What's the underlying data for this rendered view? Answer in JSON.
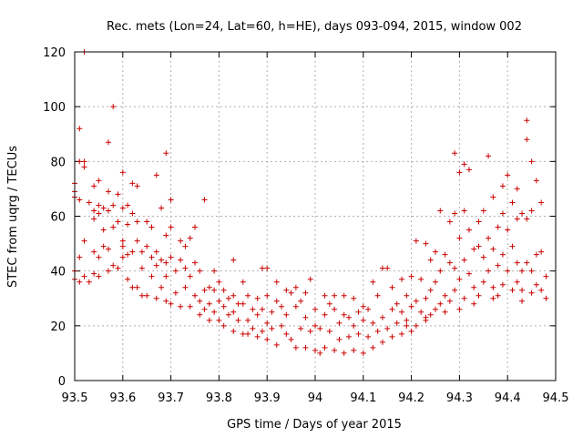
{
  "chart_data": {
    "type": "scatter",
    "title": "Rec. mets (Lon=24, Lat=60, h=HE), days 093-094, 2015, window 002",
    "xlabel": "GPS time / Days of year 2015",
    "ylabel": "STEC from uqrg / TECUs",
    "xlim": [
      93.5,
      94.5
    ],
    "ylim": [
      0,
      120
    ],
    "x_ticks": [
      "93.5",
      "93.6",
      "93.7",
      "93.8",
      "93.9",
      "94",
      "94.1",
      "94.2",
      "94.3",
      "94.4",
      "94.5"
    ],
    "y_ticks": [
      "0",
      "20",
      "40",
      "60",
      "80",
      "100",
      "120"
    ],
    "grid": true,
    "marker": "plus",
    "color": "#cc0000",
    "points": [
      [
        93.5,
        72
      ],
      [
        93.5,
        69
      ],
      [
        93.5,
        67
      ],
      [
        93.5,
        40
      ],
      [
        93.5,
        37
      ],
      [
        93.51,
        92
      ],
      [
        93.51,
        80
      ],
      [
        93.51,
        66
      ],
      [
        93.51,
        45
      ],
      [
        93.51,
        36
      ],
      [
        93.52,
        120
      ],
      [
        93.52,
        80
      ],
      [
        93.52,
        78
      ],
      [
        93.52,
        51
      ],
      [
        93.52,
        38
      ],
      [
        93.53,
        65
      ],
      [
        93.53,
        36
      ],
      [
        93.54,
        71
      ],
      [
        93.54,
        62
      ],
      [
        93.54,
        59
      ],
      [
        93.54,
        47
      ],
      [
        93.54,
        39
      ],
      [
        93.55,
        73
      ],
      [
        93.55,
        64
      ],
      [
        93.55,
        61
      ],
      [
        93.55,
        45
      ],
      [
        93.55,
        38
      ],
      [
        93.56,
        63
      ],
      [
        93.56,
        55
      ],
      [
        93.56,
        49
      ],
      [
        93.57,
        87
      ],
      [
        93.57,
        69
      ],
      [
        93.57,
        62
      ],
      [
        93.57,
        48
      ],
      [
        93.57,
        40
      ],
      [
        93.58,
        100
      ],
      [
        93.58,
        64
      ],
      [
        93.58,
        56
      ],
      [
        93.58,
        42
      ],
      [
        93.59,
        68
      ],
      [
        93.59,
        58
      ],
      [
        93.59,
        41
      ],
      [
        93.6,
        76
      ],
      [
        93.6,
        63
      ],
      [
        93.6,
        51
      ],
      [
        93.6,
        49
      ],
      [
        93.6,
        45
      ],
      [
        93.61,
        64
      ],
      [
        93.61,
        57
      ],
      [
        93.61,
        46
      ],
      [
        93.61,
        37
      ],
      [
        93.62,
        72
      ],
      [
        93.62,
        61
      ],
      [
        93.62,
        47
      ],
      [
        93.62,
        34
      ],
      [
        93.63,
        71
      ],
      [
        93.63,
        58
      ],
      [
        93.63,
        51
      ],
      [
        93.63,
        34
      ],
      [
        93.64,
        47
      ],
      [
        93.64,
        41
      ],
      [
        93.64,
        31
      ],
      [
        93.65,
        58
      ],
      [
        93.65,
        49
      ],
      [
        93.65,
        31
      ],
      [
        93.66,
        56
      ],
      [
        93.66,
        45
      ],
      [
        93.66,
        38
      ],
      [
        93.67,
        75
      ],
      [
        93.67,
        47
      ],
      [
        93.67,
        42
      ],
      [
        93.67,
        30
      ],
      [
        93.68,
        63
      ],
      [
        93.68,
        44
      ],
      [
        93.68,
        34
      ],
      [
        93.69,
        83
      ],
      [
        93.69,
        53
      ],
      [
        93.69,
        43
      ],
      [
        93.69,
        38
      ],
      [
        93.69,
        29
      ],
      [
        93.7,
        66
      ],
      [
        93.7,
        56
      ],
      [
        93.7,
        45
      ],
      [
        93.7,
        28
      ],
      [
        93.71,
        40
      ],
      [
        93.71,
        32
      ],
      [
        93.72,
        51
      ],
      [
        93.72,
        44
      ],
      [
        93.72,
        27
      ],
      [
        93.73,
        49
      ],
      [
        93.73,
        41
      ],
      [
        93.73,
        34
      ],
      [
        93.74,
        52
      ],
      [
        93.74,
        38
      ],
      [
        93.74,
        27
      ],
      [
        93.75,
        56
      ],
      [
        93.75,
        43
      ],
      [
        93.75,
        31
      ],
      [
        93.76,
        40
      ],
      [
        93.76,
        29
      ],
      [
        93.76,
        24
      ],
      [
        93.77,
        66
      ],
      [
        93.77,
        33
      ],
      [
        93.77,
        26
      ],
      [
        93.78,
        34
      ],
      [
        93.78,
        28
      ],
      [
        93.78,
        22
      ],
      [
        93.79,
        40
      ],
      [
        93.79,
        33
      ],
      [
        93.79,
        25
      ],
      [
        93.8,
        36
      ],
      [
        93.8,
        29
      ],
      [
        93.8,
        22
      ],
      [
        93.81,
        33
      ],
      [
        93.81,
        27
      ],
      [
        93.81,
        20
      ],
      [
        93.82,
        30
      ],
      [
        93.82,
        24
      ],
      [
        93.83,
        44
      ],
      [
        93.83,
        31
      ],
      [
        93.83,
        25
      ],
      [
        93.83,
        18
      ],
      [
        93.84,
        28
      ],
      [
        93.84,
        22
      ],
      [
        93.85,
        36
      ],
      [
        93.85,
        28
      ],
      [
        93.85,
        17
      ],
      [
        93.86,
        31
      ],
      [
        93.86,
        22
      ],
      [
        93.86,
        17
      ],
      [
        93.87,
        26
      ],
      [
        93.87,
        19
      ],
      [
        93.88,
        30
      ],
      [
        93.88,
        24
      ],
      [
        93.88,
        16
      ],
      [
        93.89,
        41
      ],
      [
        93.89,
        26
      ],
      [
        93.89,
        18
      ],
      [
        93.9,
        41
      ],
      [
        93.9,
        31
      ],
      [
        93.9,
        21
      ],
      [
        93.9,
        15
      ],
      [
        93.91,
        25
      ],
      [
        93.91,
        19
      ],
      [
        93.92,
        36
      ],
      [
        93.92,
        29
      ],
      [
        93.92,
        13
      ],
      [
        93.93,
        27
      ],
      [
        93.93,
        20
      ],
      [
        93.94,
        33
      ],
      [
        93.94,
        24
      ],
      [
        93.94,
        17
      ],
      [
        93.95,
        32
      ],
      [
        93.95,
        15
      ],
      [
        93.96,
        34
      ],
      [
        93.96,
        27
      ],
      [
        93.96,
        12
      ],
      [
        93.97,
        29
      ],
      [
        93.97,
        19
      ],
      [
        93.98,
        32
      ],
      [
        93.98,
        23
      ],
      [
        93.98,
        12
      ],
      [
        93.99,
        37
      ],
      [
        93.99,
        18
      ],
      [
        94.0,
        26
      ],
      [
        94.0,
        20
      ],
      [
        94.0,
        11
      ],
      [
        94.01,
        19
      ],
      [
        94.01,
        10
      ],
      [
        94.02,
        31
      ],
      [
        94.02,
        24
      ],
      [
        94.02,
        12
      ],
      [
        94.03,
        28
      ],
      [
        94.03,
        18
      ],
      [
        94.04,
        31
      ],
      [
        94.04,
        26
      ],
      [
        94.04,
        11
      ],
      [
        94.05,
        21
      ],
      [
        94.05,
        15
      ],
      [
        94.06,
        31
      ],
      [
        94.06,
        24
      ],
      [
        94.06,
        10
      ],
      [
        94.07,
        23
      ],
      [
        94.07,
        16
      ],
      [
        94.08,
        30
      ],
      [
        94.08,
        20
      ],
      [
        94.08,
        11
      ],
      [
        94.09,
        25
      ],
      [
        94.09,
        17
      ],
      [
        94.1,
        27
      ],
      [
        94.1,
        22
      ],
      [
        94.1,
        10
      ],
      [
        94.11,
        26
      ],
      [
        94.11,
        16
      ],
      [
        94.12,
        36
      ],
      [
        94.12,
        21
      ],
      [
        94.12,
        12
      ],
      [
        94.13,
        31
      ],
      [
        94.13,
        18
      ],
      [
        94.14,
        41
      ],
      [
        94.14,
        23
      ],
      [
        94.14,
        14
      ],
      [
        94.15,
        41
      ],
      [
        94.15,
        19
      ],
      [
        94.16,
        34
      ],
      [
        94.16,
        26
      ],
      [
        94.16,
        16
      ],
      [
        94.17,
        28
      ],
      [
        94.17,
        21
      ],
      [
        94.18,
        37
      ],
      [
        94.18,
        25
      ],
      [
        94.18,
        17
      ],
      [
        94.19,
        31
      ],
      [
        94.19,
        22
      ],
      [
        94.2,
        38
      ],
      [
        94.2,
        27
      ],
      [
        94.2,
        18
      ],
      [
        94.21,
        51
      ],
      [
        94.21,
        29
      ],
      [
        94.21,
        20
      ],
      [
        94.22,
        37
      ],
      [
        94.22,
        25
      ],
      [
        94.23,
        50
      ],
      [
        94.23,
        30
      ],
      [
        94.23,
        22
      ],
      [
        94.24,
        44
      ],
      [
        94.24,
        33
      ],
      [
        94.24,
        24
      ],
      [
        94.25,
        47
      ],
      [
        94.25,
        36
      ],
      [
        94.25,
        26
      ],
      [
        94.26,
        62
      ],
      [
        94.26,
        40
      ],
      [
        94.26,
        28
      ],
      [
        94.27,
        46
      ],
      [
        94.27,
        31
      ],
      [
        94.28,
        58
      ],
      [
        94.28,
        43
      ],
      [
        94.28,
        29
      ],
      [
        94.29,
        83
      ],
      [
        94.29,
        61
      ],
      [
        94.29,
        41
      ],
      [
        94.29,
        33
      ],
      [
        94.3,
        76
      ],
      [
        94.3,
        52
      ],
      [
        94.3,
        37
      ],
      [
        94.31,
        79
      ],
      [
        94.31,
        62
      ],
      [
        94.31,
        44
      ],
      [
        94.31,
        30
      ],
      [
        94.32,
        77
      ],
      [
        94.32,
        55
      ],
      [
        94.32,
        39
      ],
      [
        94.33,
        48
      ],
      [
        94.33,
        34
      ],
      [
        94.34,
        58
      ],
      [
        94.34,
        49
      ],
      [
        94.34,
        31
      ],
      [
        94.35,
        62
      ],
      [
        94.35,
        45
      ],
      [
        94.35,
        36
      ],
      [
        94.36,
        82
      ],
      [
        94.36,
        52
      ],
      [
        94.36,
        40
      ],
      [
        94.37,
        67
      ],
      [
        94.37,
        48
      ],
      [
        94.37,
        34
      ],
      [
        94.38,
        56
      ],
      [
        94.38,
        42
      ],
      [
        94.38,
        31
      ],
      [
        94.39,
        71
      ],
      [
        94.39,
        61
      ],
      [
        94.39,
        46
      ],
      [
        94.39,
        35
      ],
      [
        94.4,
        75
      ],
      [
        94.4,
        55
      ],
      [
        94.4,
        40
      ],
      [
        94.41,
        65
      ],
      [
        94.41,
        49
      ],
      [
        94.41,
        33
      ],
      [
        94.42,
        70
      ],
      [
        94.42,
        59
      ],
      [
        94.42,
        43
      ],
      [
        94.43,
        61
      ],
      [
        94.43,
        40
      ],
      [
        94.43,
        33
      ],
      [
        94.44,
        95
      ],
      [
        94.44,
        88
      ],
      [
        94.44,
        59
      ],
      [
        94.44,
        43
      ],
      [
        94.45,
        80
      ],
      [
        94.45,
        62
      ],
      [
        94.45,
        40
      ],
      [
        94.45,
        32
      ],
      [
        94.46,
        73
      ],
      [
        94.46,
        46
      ],
      [
        94.46,
        35
      ],
      [
        94.47,
        65
      ],
      [
        94.47,
        47
      ],
      [
        94.47,
        33
      ],
      [
        94.48,
        30
      ],
      [
        94.48,
        38
      ],
      [
        94.42,
        36
      ],
      [
        94.43,
        29
      ],
      [
        94.37,
        30
      ],
      [
        94.33,
        28
      ],
      [
        94.3,
        26
      ],
      [
        94.27,
        25
      ],
      [
        94.23,
        23
      ],
      [
        94.19,
        20
      ]
    ]
  }
}
